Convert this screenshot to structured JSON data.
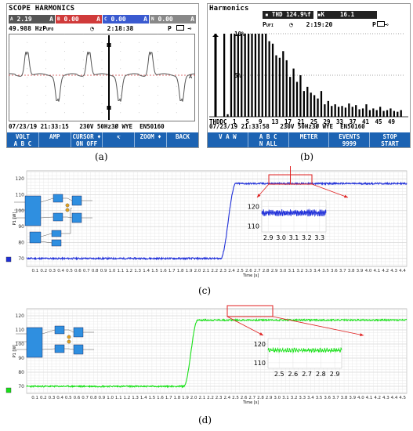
{
  "panel_a": {
    "title": "SCOPE HARMONICS",
    "channels": [
      {
        "tag": "A",
        "value": "2.19",
        "unit": "A",
        "color": "#555555"
      },
      {
        "tag": "B",
        "value": "0.00",
        "unit": "A",
        "color": "#d03a3a"
      },
      {
        "tag": "C",
        "value": "0.00",
        "unit": "A",
        "color": "#3a5ad0"
      },
      {
        "tag": "N",
        "value": "0.00",
        "unit": "A",
        "color": "#888888"
      }
    ],
    "freq": "49.988 HzP",
    "freq_sub": "UFO",
    "clock_icon": "timer-icon",
    "time": "2:18:38",
    "status_right": "P",
    "trace_label": "A",
    "footer": {
      "date": "07/23/19",
      "time": "21:33:15",
      "voltage": "230V",
      "freq": "50Hz",
      "phase": "3Ø",
      "config": "WYE",
      "std": "EN50160"
    },
    "softkeys": [
      {
        "line1": "VOLT",
        "line2": "A B C"
      },
      {
        "line1": "AMP",
        "line2": ""
      },
      {
        "line1": "CURSOR ♦",
        "line2": "ON  OFF"
      },
      {
        "line1": "↸",
        "line2": ""
      },
      {
        "line1": "ZOOM ♦",
        "line2": ""
      },
      {
        "line1": "BACK",
        "line2": ""
      }
    ]
  },
  "panel_b": {
    "title": "Harmonics",
    "thd_badge": "THD 124.9%f",
    "k_badge": "K",
    "k_value": "16.1",
    "mode": "P",
    "mode_sub": "UFI",
    "time": "2:19:20",
    "y_labels": [
      "10%",
      "5%"
    ],
    "x_labels": [
      "THDDC",
      "1",
      "5",
      "9",
      "13",
      "17",
      "21",
      "25",
      "29",
      "33",
      "37",
      "41",
      "45",
      "49"
    ],
    "footer": {
      "date": "07/23/19",
      "time": "21:33:58",
      "voltage": "230V",
      "freq": "50Hz",
      "phase": "3Ø",
      "config": "WYE",
      "std": "EN50160"
    },
    "softkeys": [
      {
        "line1": "V A W",
        "line2": ""
      },
      {
        "line1": "A B C",
        "line2": "N ALL"
      },
      {
        "line1": "METER",
        "line2": ""
      },
      {
        "line1": "EVENTS",
        "line2": "9999"
      },
      {
        "line1": "STOP",
        "line2": "START"
      }
    ]
  },
  "captions": [
    "(a)",
    "(b)",
    "(c)",
    "(d)"
  ],
  "chart_data": [
    {
      "type": "bar",
      "panel": "b",
      "categories": [
        "THD",
        "DC",
        "1",
        "2",
        "3",
        "4",
        "5",
        "6",
        "7",
        "8",
        "9",
        "10",
        "11",
        "12",
        "13",
        "14",
        "15",
        "16",
        "17",
        "18",
        "19",
        "20",
        "21",
        "22",
        "23",
        "24",
        "25",
        "26",
        "27",
        "28",
        "29",
        "30",
        "31",
        "32",
        "33",
        "34",
        "35",
        "36",
        "37",
        "38",
        "39",
        "40",
        "41",
        "42",
        "43",
        "44",
        "45",
        "46",
        "47",
        "48",
        "49",
        "50"
      ],
      "values": [
        10.3,
        0.3,
        10.3,
        10.3,
        10.3,
        10.3,
        10.3,
        10.3,
        10.3,
        10.3,
        10.3,
        10.3,
        10.3,
        9.1,
        8.8,
        7.4,
        7.1,
        7.9,
        6.8,
        4.8,
        5.8,
        4.2,
        5.0,
        3.1,
        3.6,
        2.9,
        2.6,
        2.2,
        3.1,
        1.5,
        1.9,
        1.3,
        1.5,
        1.2,
        1.3,
        1.1,
        1.6,
        1.2,
        1.4,
        0.9,
        1.0,
        1.5,
        0.8,
        1.0,
        0.8,
        1.2,
        0.7,
        0.8,
        1.0,
        0.7,
        0.6,
        0.8
      ],
      "ylim": [
        0,
        10
      ],
      "yticks": [
        5,
        10
      ]
    },
    {
      "type": "line",
      "panel": "c",
      "ylabel": "P1 [W]",
      "xlabel": "Time [s]",
      "xlim": [
        0,
        4.45
      ],
      "ylim": [
        65,
        125
      ],
      "yticks": [
        70,
        80,
        90,
        100,
        110,
        120
      ],
      "xticks": [
        0.1,
        0.2,
        0.3,
        0.4,
        0.5,
        0.6,
        0.7,
        0.8,
        0.9,
        1.0,
        1.1,
        1.2,
        1.3,
        1.4,
        1.5,
        1.6,
        1.7,
        1.8,
        1.9,
        2.0,
        2.1,
        2.2,
        2.3,
        2.4,
        2.5,
        2.6,
        2.7,
        2.8,
        2.9,
        3.0,
        3.1,
        3.2,
        3.3,
        3.4,
        3.5,
        3.6,
        3.7,
        3.8,
        3.9,
        4.0,
        4.1,
        4.2,
        4.3,
        4.4
      ],
      "color": "#1f2fd8",
      "baseline": 70,
      "step_start": 2.27,
      "step_end": 2.45,
      "plateau": 117,
      "zoom": {
        "xlim": [
          2.85,
          3.35
        ],
        "ylim": [
          107,
          123
        ],
        "xticks": [
          2.9,
          3.0,
          3.1,
          3.2,
          3.3
        ],
        "yticks": [
          110,
          120
        ]
      }
    },
    {
      "type": "line",
      "panel": "d",
      "ylabel": "P1 [W]",
      "xlabel": "Time [s]",
      "xlim": [
        0,
        4.55
      ],
      "ylim": [
        65,
        125
      ],
      "yticks": [
        70,
        80,
        90,
        100,
        110,
        120
      ],
      "xticks": [
        0.1,
        0.2,
        0.3,
        0.4,
        0.5,
        0.6,
        0.7,
        0.8,
        0.9,
        1.0,
        1.1,
        1.2,
        1.3,
        1.4,
        1.5,
        1.6,
        1.7,
        1.8,
        1.9,
        2.0,
        2.1,
        2.2,
        2.3,
        2.4,
        2.5,
        2.6,
        2.7,
        2.8,
        2.9,
        3.0,
        3.1,
        3.2,
        3.3,
        3.4,
        3.5,
        3.6,
        3.7,
        3.8,
        3.9,
        4.0,
        4.1,
        4.2,
        4.3,
        4.4,
        4.5
      ],
      "color": "#18e018",
      "baseline": 70,
      "step_start": 1.88,
      "step_end": 2.05,
      "plateau": 117,
      "zoom": {
        "xlim": [
          2.42,
          2.95
        ],
        "ylim": [
          107,
          123
        ],
        "xticks": [
          2.5,
          2.6,
          2.7,
          2.8,
          2.9
        ],
        "yticks": [
          110,
          120
        ]
      }
    }
  ]
}
